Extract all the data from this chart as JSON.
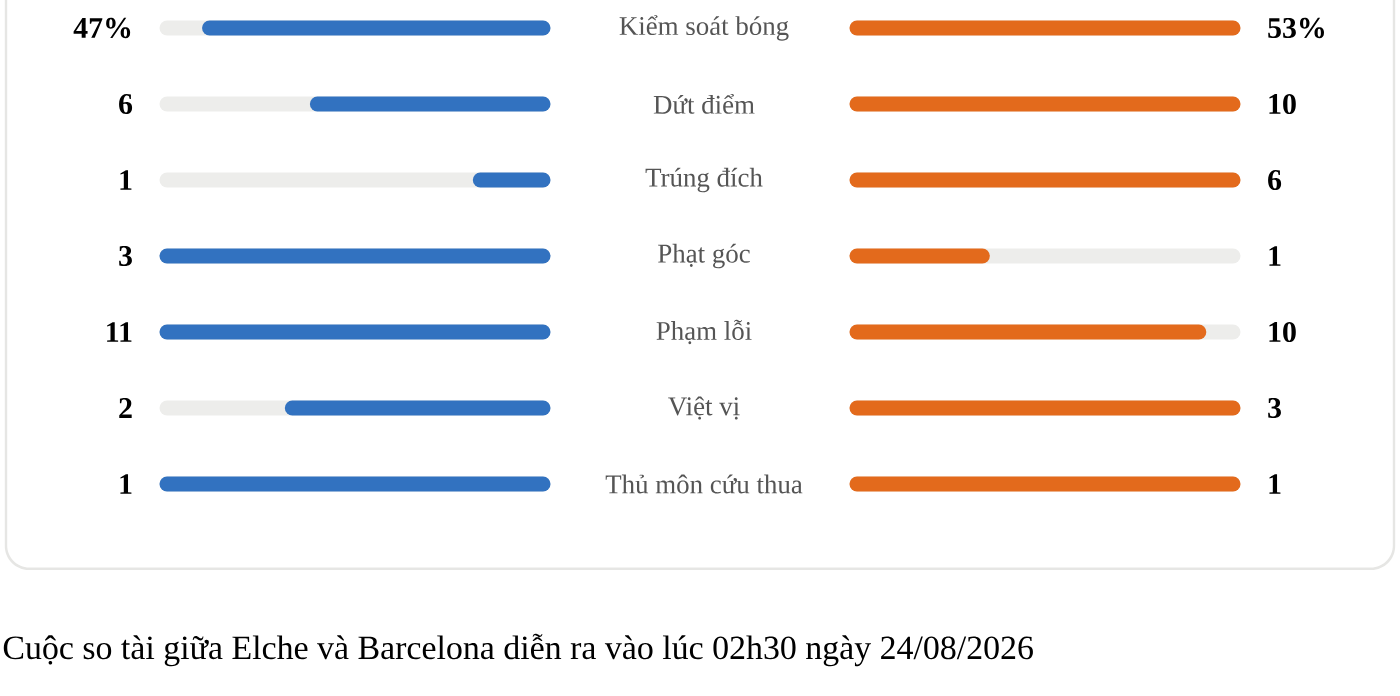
{
  "chart_data": {
    "type": "other",
    "categories": [
      "Kiểm soát bóng",
      "Dứt điểm",
      "Trúng đích",
      "Phạt góc",
      "Phạm lỗi",
      "Việt vị",
      "Thủ môn cứu thua"
    ],
    "series": [
      {
        "color": "#3272c0",
        "values": [
          47,
          6,
          1,
          3,
          11,
          2,
          1
        ],
        "value_labels": [
          "47%",
          "6",
          "1",
          "3",
          "11",
          "2",
          "1"
        ]
      },
      {
        "color": "#e36a1c",
        "values": [
          53,
          10,
          6,
          1,
          10,
          3,
          1
        ],
        "value_labels": [
          "53%",
          "10",
          "6",
          "1",
          "10",
          "3",
          "1"
        ]
      }
    ],
    "annotations": [
      "Cuộc so tài giữa Elche và Barcelona diễn ra vào lúc 02h30 ngày 24/08/2026"
    ]
  }
}
